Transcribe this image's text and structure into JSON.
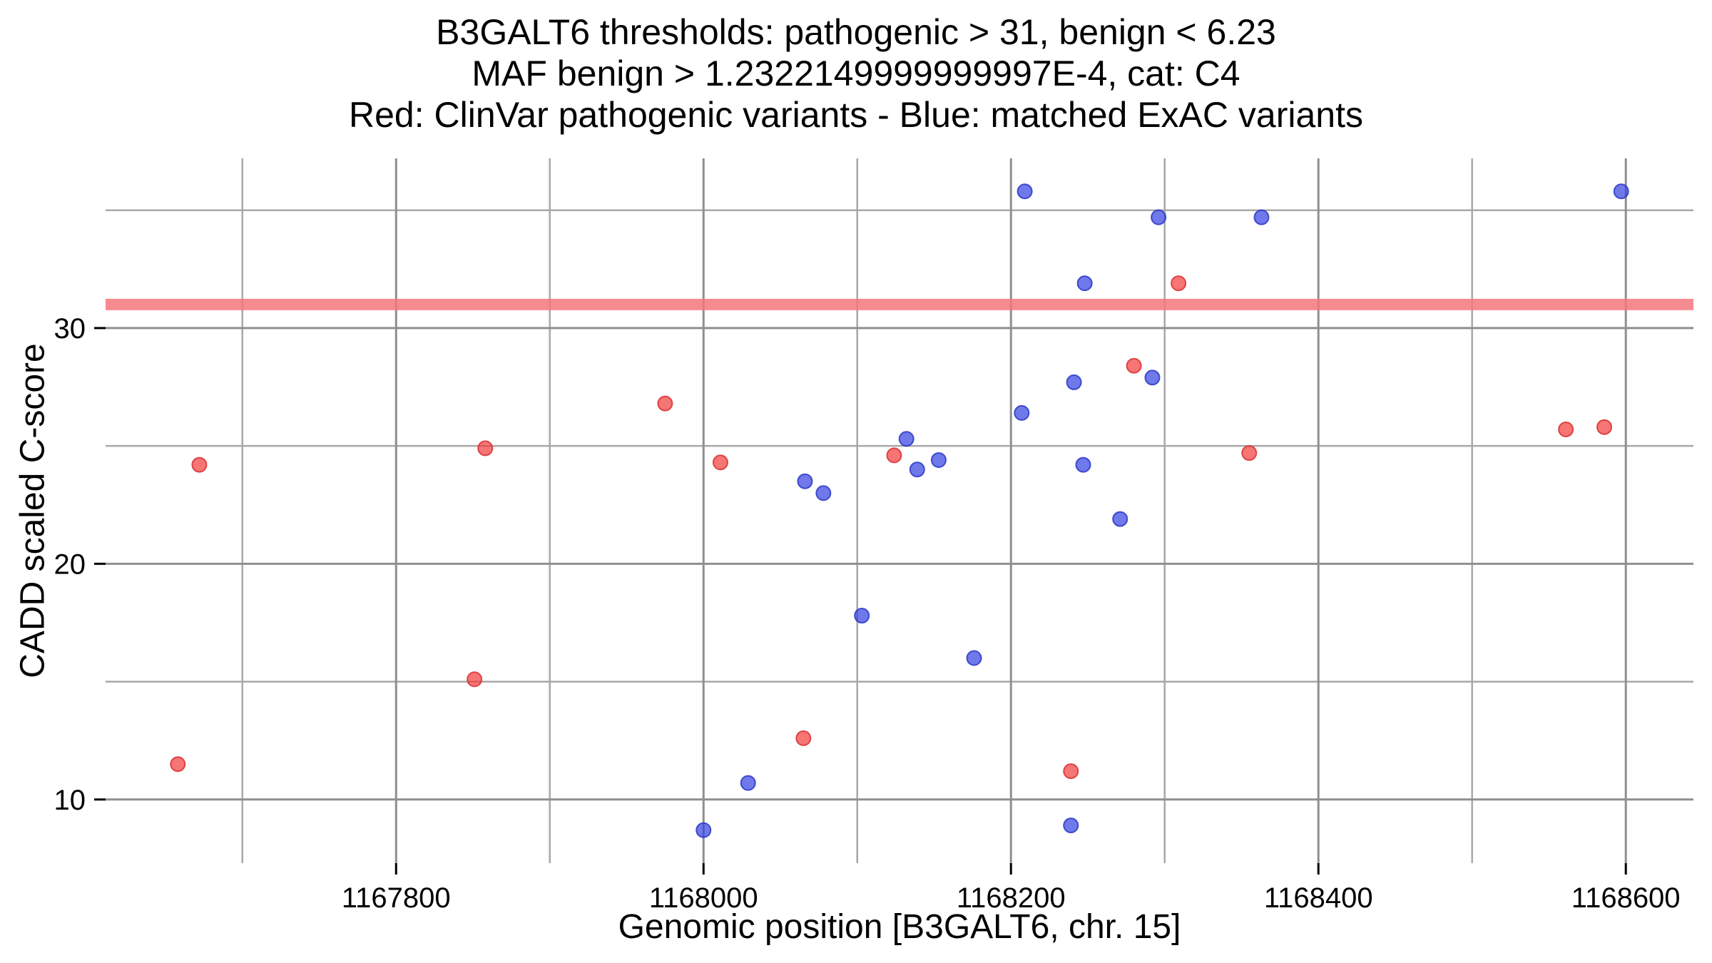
{
  "title": {
    "line1": "B3GALT6 thresholds: pathogenic > 31, benign < 6.23",
    "line2": "MAF benign > 1.2322149999999997E-4, cat: C4",
    "line3": "Red: ClinVar pathogenic variants - Blue: matched ExAC variants"
  },
  "chart_data": {
    "type": "scatter",
    "title": "B3GALT6 thresholds: pathogenic > 31, benign < 6.23 | MAF benign > 1.2322149999999997E-4, cat: C4 | Red: ClinVar pathogenic variants - Blue: matched ExAC variants",
    "xlabel": "Genomic position [B3GALT6, chr. 15]",
    "ylabel": "CADD scaled C-score",
    "xlim": [
      1167611,
      1168644
    ],
    "ylim": [
      7.3,
      37.2
    ],
    "x_ticks": {
      "values": [
        1167800,
        1168000,
        1168200,
        1168400,
        1168600
      ],
      "labels": [
        "1167800",
        "1168000",
        "1168200",
        "1168400",
        "1168600"
      ]
    },
    "y_ticks": {
      "values": [
        10,
        20,
        30
      ],
      "labels": [
        "10",
        "20",
        "30"
      ]
    },
    "grid": {
      "visible": true,
      "x_minor": [
        1167700,
        1167900,
        1168100,
        1168300,
        1168500
      ],
      "y_minor": [
        15,
        25,
        35
      ]
    },
    "threshold": {
      "y": 31,
      "meaning": "pathogenic > 31",
      "color": "#F4777B"
    },
    "colors": {
      "grid_major": "#8F8F8F",
      "grid_minor": "#A8A8A8",
      "tick": "#000000",
      "text": "#000000",
      "threshold": "#F4777B"
    },
    "series": [
      {
        "id": "clinvar-pathogenic",
        "name": "ClinVar pathogenic variants",
        "fill": "#F23B3B",
        "stroke": "#D92F2F",
        "points": [
          [
            1167658,
            11.5
          ],
          [
            1167672,
            24.2
          ],
          [
            1167851,
            15.1
          ],
          [
            1167858,
            24.9
          ],
          [
            1167975,
            26.8
          ],
          [
            1168011,
            24.3
          ],
          [
            1168065,
            12.6
          ],
          [
            1168124,
            24.6
          ],
          [
            1168239,
            11.2
          ],
          [
            1168280,
            28.4
          ],
          [
            1168309,
            31.9
          ],
          [
            1168355,
            24.7
          ],
          [
            1168561,
            25.7
          ],
          [
            1168586,
            25.8
          ]
        ]
      },
      {
        "id": "exac-matched",
        "name": "matched ExAC variants",
        "fill": "#3340E0",
        "stroke": "#2A36C8",
        "points": [
          [
            1168000,
            8.7
          ],
          [
            1168029,
            10.7
          ],
          [
            1168066,
            23.5
          ],
          [
            1168078,
            23.0
          ],
          [
            1168103,
            17.8
          ],
          [
            1168132,
            25.3
          ],
          [
            1168139,
            24.0
          ],
          [
            1168153,
            24.4
          ],
          [
            1168176,
            16.0
          ],
          [
            1168207,
            26.4
          ],
          [
            1168209,
            35.8
          ],
          [
            1168239,
            8.9
          ],
          [
            1168241,
            27.7
          ],
          [
            1168247,
            24.2
          ],
          [
            1168248,
            31.9
          ],
          [
            1168271,
            21.9
          ],
          [
            1168292,
            27.9
          ],
          [
            1168296,
            34.7
          ],
          [
            1168363,
            34.7
          ],
          [
            1168597,
            35.8
          ]
        ]
      }
    ]
  }
}
